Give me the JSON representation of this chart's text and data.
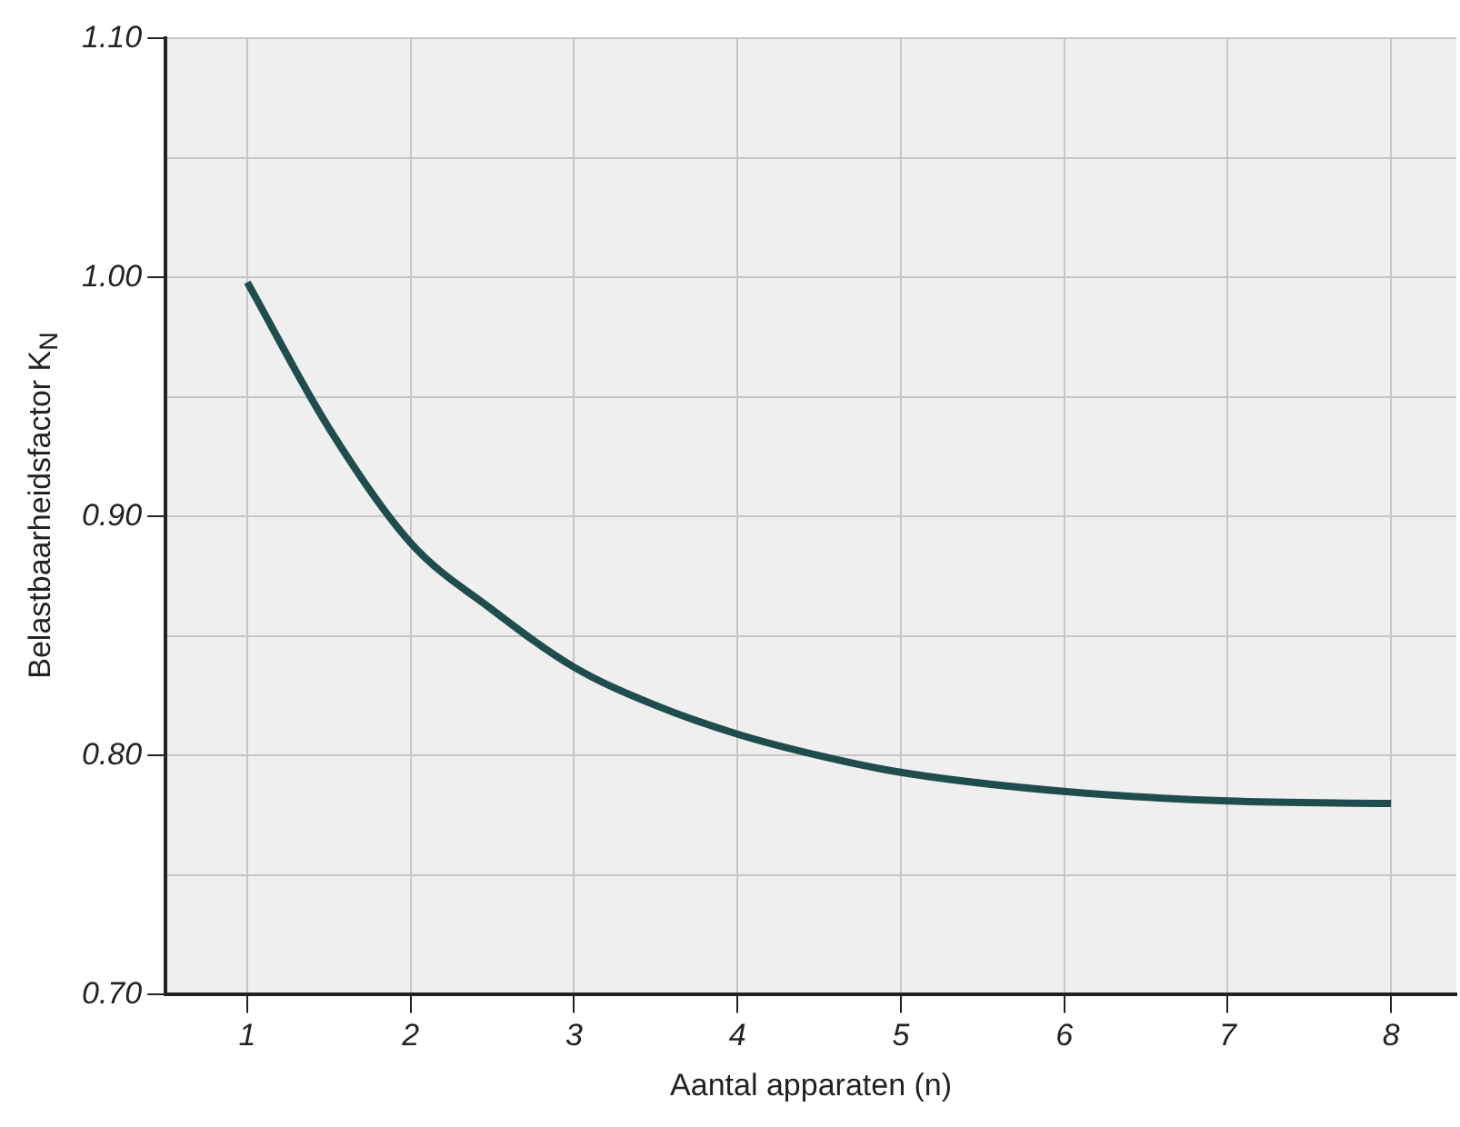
{
  "chart_data": {
    "type": "line",
    "xlabel": "Aantal apparaten (n)",
    "ylabel": "Belastbaarheidsfactor K$_{N}$",
    "series": [
      {
        "color": "#1f4d4d",
        "x": [
          1,
          1.5,
          2,
          2.5,
          3,
          3.5,
          4,
          4.5,
          5,
          6,
          7,
          8
        ],
        "values": [
          0.998,
          0.937,
          0.889,
          0.861,
          0.837,
          0.821,
          0.809,
          0.8,
          0.793,
          0.785,
          0.781,
          0.78
        ]
      }
    ],
    "xlim": [
      0.5,
      8.4
    ],
    "xticks": [
      1,
      2,
      3,
      4,
      5,
      6,
      7,
      8
    ],
    "ylim": [
      0.7,
      1.1
    ],
    "yticks": [
      {
        "value": 0.7,
        "label": "0.70"
      },
      {
        "value": 0.75,
        "label": null
      },
      {
        "value": 0.8,
        "label": "0.80"
      },
      {
        "value": 0.85,
        "label": null
      },
      {
        "value": 0.9,
        "label": "0.90"
      },
      {
        "value": 0.95,
        "label": null
      },
      {
        "value": 1.0,
        "label": "1.00"
      },
      {
        "value": 1.05,
        "label": null
      },
      {
        "value": 1.1,
        "label": "1.10"
      }
    ],
    "grid": true,
    "legend": false,
    "marker": "none",
    "line_style": "solid"
  }
}
